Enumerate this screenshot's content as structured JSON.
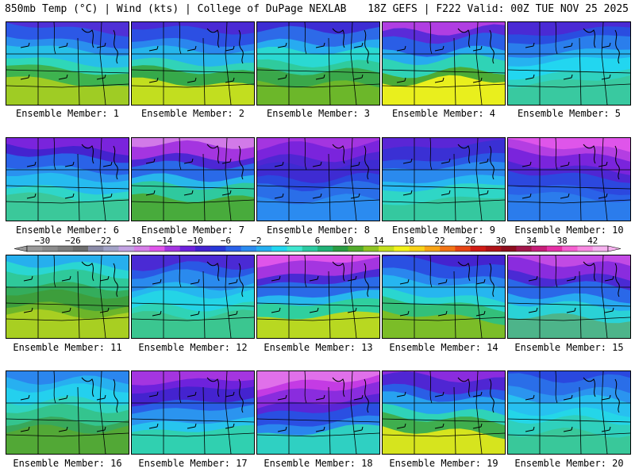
{
  "header": {
    "left": "850mb Temp (°C) | Wind (kts) | College of DuPage NEXLAB",
    "right": "18Z GEFS | F222 Valid: 00Z TUE NOV 25 2025"
  },
  "colorbar": {
    "ticks": [
      "−30",
      "−26",
      "−22",
      "−18",
      "−14",
      "−10",
      "−6",
      "−2",
      "2",
      "6",
      "10",
      "14",
      "18",
      "22",
      "26",
      "30",
      "34",
      "38",
      "42"
    ],
    "colors": [
      "#9a9a9a",
      "#8c8c8c",
      "#7d7d7d",
      "#6d6d6d",
      "#8b8ba8",
      "#a2a2c6",
      "#c3a3e3",
      "#d67fe8",
      "#df55ea",
      "#a435e0",
      "#6e22dc",
      "#4423cf",
      "#2838d8",
      "#2a62e8",
      "#2b8bf0",
      "#26aff0",
      "#22d6f0",
      "#3fe6cf",
      "#2ccaa2",
      "#21b277",
      "#2a9c43",
      "#53ab2b",
      "#8fc424",
      "#c4df1f",
      "#f2f21c",
      "#f8d219",
      "#f8a416",
      "#f27415",
      "#e64414",
      "#d01b15",
      "#b01218",
      "#8d0e1e",
      "#a2164b",
      "#c61e78",
      "#e530a6",
      "#f560d0",
      "#f78be1",
      "#f6b2ef"
    ]
  },
  "panels": [
    {
      "label": "Ensemble Member: 1",
      "colors": [
        "#4f30d6",
        "#2c58e6",
        "#2a8fee",
        "#27bfe8",
        "#2fd7b8",
        "#3eb34f",
        "#9fcc24"
      ]
    },
    {
      "label": "Ensemble Member: 2",
      "colors": [
        "#4a2ad4",
        "#2c4fe3",
        "#2a86ee",
        "#26b5ec",
        "#31d3b8",
        "#36a94a",
        "#c2de1f"
      ]
    },
    {
      "label": "Ensemble Member: 3",
      "colors": [
        "#3d2dd4",
        "#2d6ae8",
        "#27abf0",
        "#2ad9d2",
        "#2fcb9d",
        "#3aa84a",
        "#6cb72a"
      ]
    },
    {
      "label": "Ensemble Member: 4",
      "colors": [
        "#b03ee2",
        "#5a2bd8",
        "#2a5ee6",
        "#27aaf0",
        "#2fd3b6",
        "#4cab36",
        "#e9ef1d"
      ]
    },
    {
      "label": "Ensemble Member: 5",
      "colors": [
        "#4a2ad4",
        "#2a4de0",
        "#2a7eec",
        "#26b2f0",
        "#22d6f0",
        "#2fd2c0",
        "#39c9a0"
      ]
    },
    {
      "label": "Ensemble Member: 6",
      "colors": [
        "#7a24dc",
        "#4423cf",
        "#2a62e8",
        "#2a92ef",
        "#26bbf0",
        "#2fd6c8",
        "#3bc89a"
      ]
    },
    {
      "label": "Ensemble Member: 7",
      "colors": [
        "#d27ae8",
        "#a435e0",
        "#4c27d4",
        "#2a6ae8",
        "#28b6ec",
        "#2fc99e",
        "#48ab3c"
      ]
    },
    {
      "label": "Ensemble Member: 8",
      "colors": [
        "#a435e0",
        "#7a24dc",
        "#4f26d3",
        "#3e2bd2",
        "#2a48df",
        "#2a6ee8",
        "#2b8bf0"
      ]
    },
    {
      "label": "Ensemble Member: 9",
      "colors": [
        "#5a26d6",
        "#3a30d4",
        "#2a58e4",
        "#2a8aee",
        "#27b8f0",
        "#2fd6c6",
        "#35c89f"
      ]
    },
    {
      "label": "Ensemble Member: 10",
      "colors": [
        "#df55ea",
        "#b43ee2",
        "#7a24dc",
        "#4f26d3",
        "#2c48df",
        "#2a62e8",
        "#2b7cec"
      ]
    },
    {
      "label": "Ensemble Member: 11",
      "colors": [
        "#26afee",
        "#2ad6d2",
        "#2fc99a",
        "#34ad5c",
        "#3d9e3c",
        "#6cb52a",
        "#a8cf22"
      ]
    },
    {
      "label": "Ensemble Member: 12",
      "colors": [
        "#4a2ad4",
        "#2a58e4",
        "#2a8aee",
        "#26b6f0",
        "#24d4e6",
        "#2fd3b6",
        "#3bc690"
      ]
    },
    {
      "label": "Ensemble Member: 13",
      "colors": [
        "#df55ea",
        "#a435e0",
        "#4a2ad4",
        "#2a6ae8",
        "#27b8ee",
        "#2fcf9e",
        "#b8d821"
      ]
    },
    {
      "label": "Ensemble Member: 14",
      "colors": [
        "#4423cf",
        "#2a50e2",
        "#2a86ee",
        "#26b6f0",
        "#2ad6d0",
        "#33c07a",
        "#7bbd28"
      ]
    },
    {
      "label": "Ensemble Member: 15",
      "colors": [
        "#c24ae4",
        "#8a2cde",
        "#4a2ad4",
        "#2a68e8",
        "#27aaf0",
        "#2ad2d6",
        "#4db48a"
      ]
    },
    {
      "label": "Ensemble Member: 16",
      "colors": [
        "#2b86ee",
        "#27b0f0",
        "#24d0ee",
        "#30d4c2",
        "#34c48e",
        "#38a85a",
        "#52a836"
      ]
    },
    {
      "label": "Ensemble Member: 17",
      "colors": [
        "#a435e0",
        "#6e22dc",
        "#4423cf",
        "#2a5ee6",
        "#2b94ef",
        "#27c4ee",
        "#30d0b0"
      ]
    },
    {
      "label": "Ensemble Member: 18",
      "colors": [
        "#e070ea",
        "#c43be4",
        "#8a2cde",
        "#5a26d6",
        "#2a4fe2",
        "#2a86ee",
        "#2fd0c2"
      ]
    },
    {
      "label": "Ensemble Member: 19",
      "colors": [
        "#8a2cde",
        "#4f26d3",
        "#2a5ee6",
        "#27a2f0",
        "#2fd3b8",
        "#3fae4e",
        "#d6e41e"
      ]
    },
    {
      "label": "Ensemble Member: 20",
      "colors": [
        "#2a48df",
        "#2a6ee8",
        "#2b94ef",
        "#27c0f0",
        "#24d6e8",
        "#2fd0bc",
        "#39c89a"
      ]
    }
  ]
}
